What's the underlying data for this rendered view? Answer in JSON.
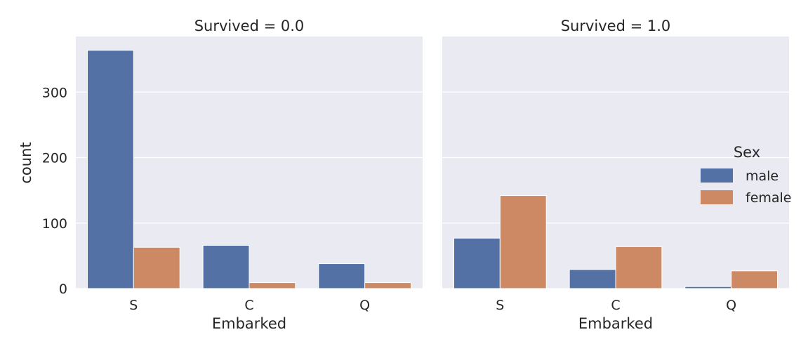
{
  "chart_data": {
    "type": "bar",
    "legend": {
      "title": "Sex",
      "position": "right",
      "entries": [
        {
          "name": "male",
          "color": "#5471a6"
        },
        {
          "name": "female",
          "color": "#cc8963"
        }
      ]
    },
    "ylabel": "count",
    "ylim": [
      0,
      385
    ],
    "yticks": [
      0,
      100,
      200,
      300
    ],
    "ytick_labels": [
      "0",
      "100",
      "200",
      "300"
    ],
    "grid": true,
    "panels": [
      {
        "title": "Survived = 0.0",
        "xlabel": "Embarked",
        "categories": [
          "S",
          "C",
          "Q"
        ],
        "series": [
          {
            "name": "male",
            "values": [
              364,
              66,
              38
            ]
          },
          {
            "name": "female",
            "values": [
              63,
              9,
              9
            ]
          }
        ]
      },
      {
        "title": "Survived = 1.0",
        "xlabel": "Embarked",
        "categories": [
          "S",
          "C",
          "Q"
        ],
        "series": [
          {
            "name": "male",
            "values": [
              77,
              29,
              3
            ]
          },
          {
            "name": "female",
            "values": [
              142,
              64,
              27
            ]
          }
        ]
      }
    ]
  }
}
